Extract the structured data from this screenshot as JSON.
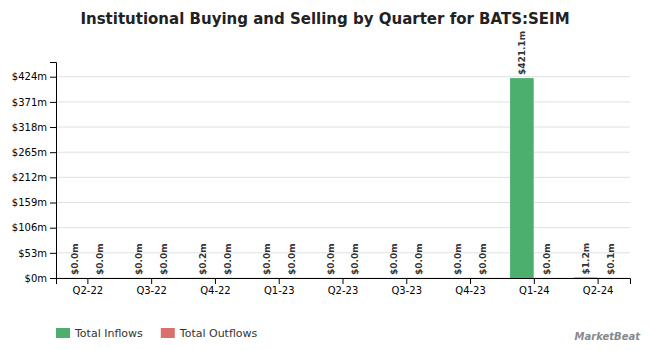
{
  "chart_data": {
    "type": "bar",
    "title": "Institutional Buying and Selling by Quarter for BATS:SEIM",
    "categories": [
      "Q2-22",
      "Q3-22",
      "Q4-22",
      "Q1-23",
      "Q2-23",
      "Q3-23",
      "Q4-23",
      "Q1-24",
      "Q2-24"
    ],
    "series": [
      {
        "name": "Total Inflows",
        "color": "#4caf6e",
        "values": [
          0.0,
          0.0,
          0.2,
          0.0,
          0.0,
          0.0,
          0.0,
          421.1,
          1.2
        ],
        "value_labels": [
          "$0.0m",
          "$0.0m",
          "$0.2m",
          "$0.0m",
          "$0.0m",
          "$0.0m",
          "$0.0m",
          "$421.1m",
          "$1.2m"
        ]
      },
      {
        "name": "Total Outflows",
        "color": "#d9706a",
        "values": [
          0.0,
          0.0,
          0.0,
          0.0,
          0.0,
          0.0,
          0.0,
          0.0,
          0.1
        ],
        "value_labels": [
          "$0.0m",
          "$0.0m",
          "$0.0m",
          "$0.0m",
          "$0.0m",
          "$0.0m",
          "$0.0m",
          "$0.0m",
          "$0.1m"
        ]
      }
    ],
    "ylim": [
      0,
      455
    ],
    "yticks": [
      {
        "value": 0,
        "label": "$0m"
      },
      {
        "value": 53,
        "label": "$53m"
      },
      {
        "value": 106,
        "label": "$106m"
      },
      {
        "value": 159,
        "label": "$159m"
      },
      {
        "value": 212,
        "label": "$212m"
      },
      {
        "value": 265,
        "label": "$265m"
      },
      {
        "value": 318,
        "label": "$318m"
      },
      {
        "value": 371,
        "label": "$371m"
      },
      {
        "value": 424,
        "label": "$424m"
      }
    ],
    "grid": true,
    "legend": "bottom-left",
    "data_labels": true,
    "annotations": [
      "MarketBeat"
    ]
  }
}
